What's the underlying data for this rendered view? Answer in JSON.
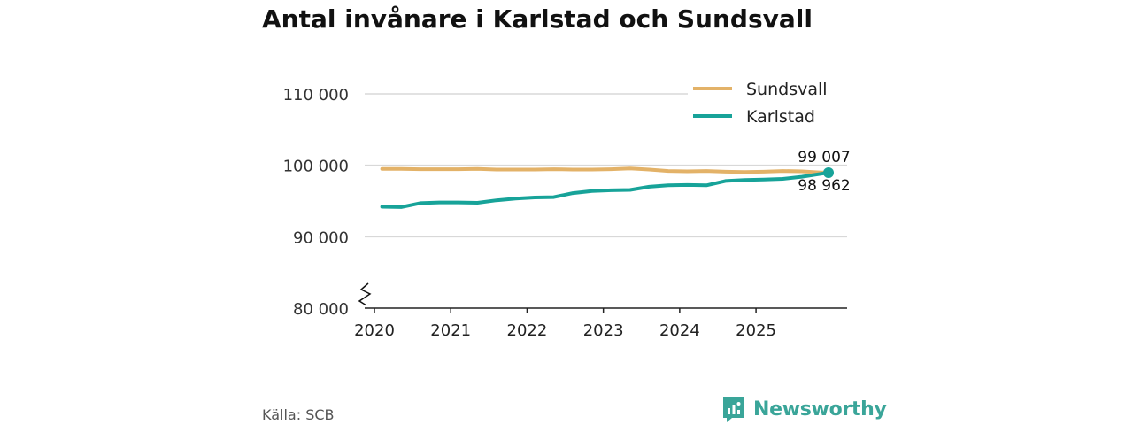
{
  "chart_data": {
    "type": "line",
    "title": "Antal invånare i Karlstad och Sundsvall",
    "xlabel": "",
    "ylabel": "",
    "ylim": [
      80000,
      110000
    ],
    "yticks": [
      80000,
      90000,
      100000,
      110000
    ],
    "ytick_labels": [
      "80 000",
      "90 000",
      "100 000",
      "110 000"
    ],
    "xlim": [
      2020,
      2026
    ],
    "xticks": [
      2020,
      2021,
      2022,
      2023,
      2024,
      2025
    ],
    "xtick_labels": [
      "2020",
      "2021",
      "2022",
      "2023",
      "2024",
      "2025"
    ],
    "grid": true,
    "axis_break": true,
    "legend_position": "top-right",
    "series": [
      {
        "name": "Sundsvall",
        "color": "#e3b268",
        "x": [
          2020.1,
          2020.35,
          2020.6,
          2020.85,
          2021.1,
          2021.35,
          2021.6,
          2021.85,
          2022.1,
          2022.35,
          2022.6,
          2022.85,
          2023.1,
          2023.35,
          2023.6,
          2023.85,
          2024.1,
          2024.35,
          2024.6,
          2024.85,
          2025.1,
          2025.35,
          2025.6,
          2025.85,
          2025.95
        ],
        "values": [
          99500,
          99500,
          99450,
          99450,
          99450,
          99500,
          99400,
          99400,
          99400,
          99450,
          99400,
          99400,
          99450,
          99550,
          99400,
          99200,
          99150,
          99200,
          99100,
          99050,
          99100,
          99200,
          99150,
          99000,
          99007
        ]
      },
      {
        "name": "Karlstad",
        "color": "#17a399",
        "x": [
          2020.1,
          2020.35,
          2020.6,
          2020.85,
          2021.1,
          2021.35,
          2021.6,
          2021.85,
          2022.1,
          2022.35,
          2022.6,
          2022.85,
          2023.1,
          2023.35,
          2023.6,
          2023.85,
          2024.1,
          2024.35,
          2024.6,
          2024.85,
          2025.1,
          2025.35,
          2025.6,
          2025.85,
          2025.95
        ],
        "values": [
          94200,
          94150,
          94700,
          94800,
          94800,
          94750,
          95100,
          95350,
          95500,
          95550,
          96100,
          96400,
          96500,
          96550,
          97000,
          97200,
          97250,
          97200,
          97800,
          97950,
          98000,
          98100,
          98400,
          98800,
          98962
        ]
      }
    ],
    "annotations": [
      {
        "series": "Sundsvall",
        "text": "99 007",
        "placement": "above"
      },
      {
        "series": "Karlstad",
        "text": "98 962",
        "placement": "below"
      }
    ]
  },
  "footer": {
    "source": "Källa: SCB",
    "brand": "Newsworthy"
  },
  "colors": {
    "grid": "#d8d8d8",
    "axis": "#222222",
    "brand": "#3aa599"
  }
}
